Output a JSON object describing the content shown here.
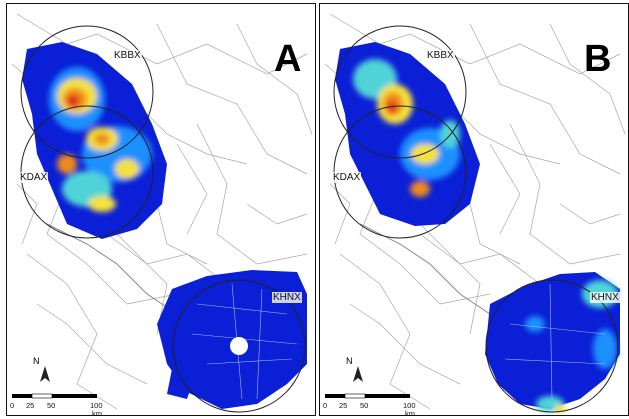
{
  "panels": {
    "a": {
      "letter": "A",
      "radars": {
        "kbbx": "KBBX",
        "kdax": "KDAX",
        "khnx": "KHNX"
      }
    },
    "b": {
      "letter": "B",
      "radars": {
        "kbbx": "KBBX",
        "kdax": "KDAX",
        "khnx": "KHNX"
      }
    }
  },
  "north_arrow": "N",
  "scale_bar": {
    "ticks": [
      "0",
      "25",
      "50",
      "100"
    ],
    "unit": "km"
  },
  "colors": {
    "low": "#0a1fd6",
    "mid_low": "#1e90ff",
    "mid": "#4fd3d8",
    "mid_high": "#f4e23a",
    "high": "#f08a1c",
    "peak": "#e0281c",
    "map_lines": "#a8a8a8"
  }
}
